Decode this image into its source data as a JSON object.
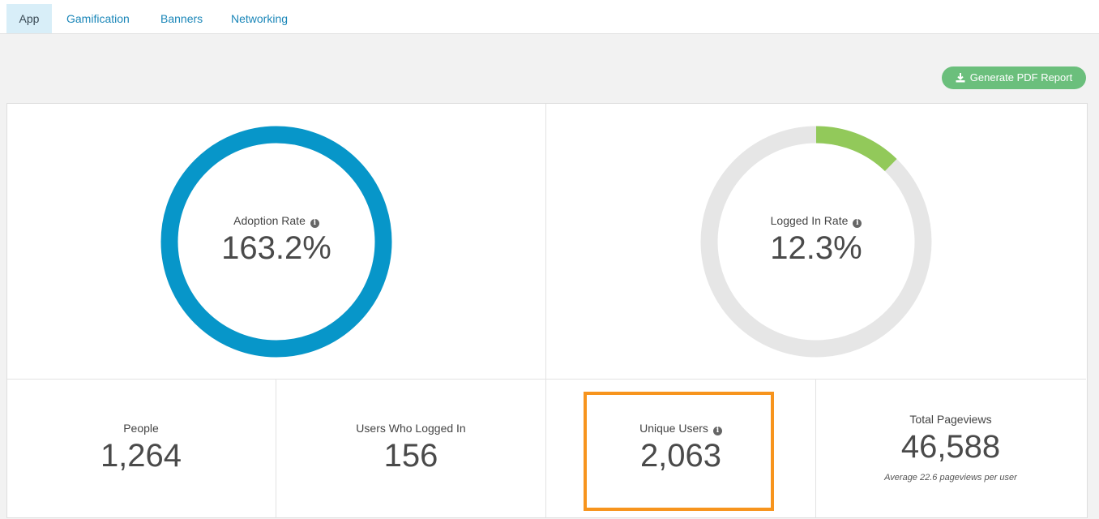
{
  "tabs": [
    {
      "label": "App",
      "active": true
    },
    {
      "label": "Gamification",
      "active": false
    },
    {
      "label": "Banners",
      "active": false
    },
    {
      "label": "Networking",
      "active": false
    }
  ],
  "toolbar": {
    "pdf_button_label": "Generate PDF Report",
    "pdf_button_icon": "download-icon"
  },
  "donuts": {
    "adoption": {
      "label": "Adoption Rate",
      "value": "163.2%",
      "fill_fraction": 1.0,
      "color": "#0796c9",
      "info_icon": "info-icon"
    },
    "logged_in": {
      "label": "Logged In Rate",
      "value": "12.3%",
      "fill_fraction": 0.123,
      "color": "#92c95a",
      "track_color": "#e6e6e6",
      "info_icon": "info-icon"
    }
  },
  "stats": {
    "people": {
      "label": "People",
      "value": "1,264"
    },
    "users_logged_in": {
      "label": "Users Who Logged In",
      "value": "156"
    },
    "unique_users": {
      "label": "Unique Users",
      "value": "2,063",
      "info_icon": "info-icon",
      "highlighted": true,
      "highlight_color": "#f7941d"
    },
    "total_pageviews": {
      "label": "Total Pageviews",
      "value": "46,588",
      "note": "Average 22.6 pageviews per user"
    }
  }
}
